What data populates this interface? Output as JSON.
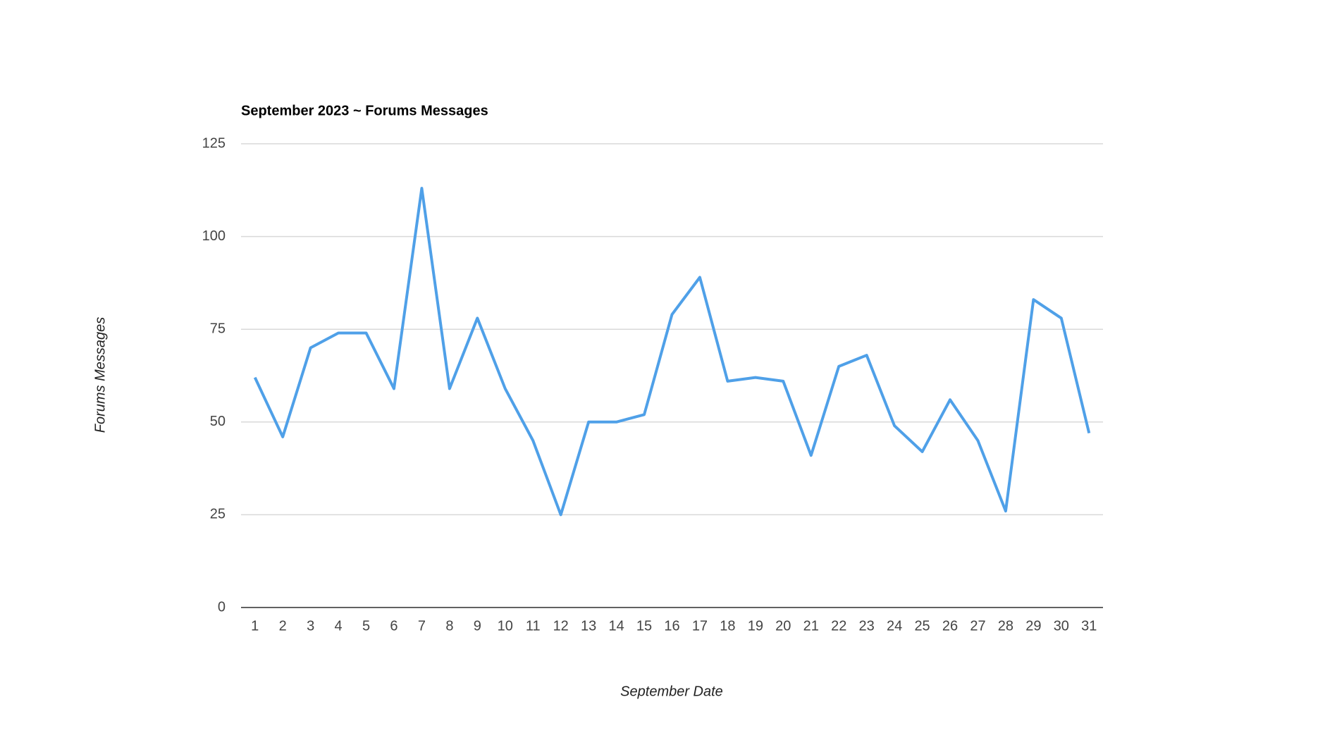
{
  "chart_data": {
    "type": "line",
    "title": "September 2023 ~ Forums Messages",
    "x_label": "September Date",
    "y_label": "Forums Messages",
    "categories": [
      "1",
      "2",
      "3",
      "4",
      "5",
      "6",
      "7",
      "8",
      "9",
      "10",
      "11",
      "12",
      "13",
      "14",
      "15",
      "16",
      "17",
      "18",
      "19",
      "20",
      "21",
      "22",
      "23",
      "24",
      "25",
      "26",
      "27",
      "28",
      "29",
      "30",
      "31"
    ],
    "series": [
      {
        "name": "Forums Messages",
        "color": "#4fa0e8",
        "values": [
          62,
          46,
          70,
          74,
          74,
          59,
          113,
          59,
          78,
          59,
          45,
          25,
          50,
          50,
          52,
          79,
          89,
          61,
          62,
          61,
          41,
          65,
          68,
          49,
          42,
          56,
          45,
          26,
          83,
          78,
          47
        ]
      }
    ],
    "ylim": [
      0,
      125
    ],
    "yticks": [
      0,
      25,
      50,
      75,
      100,
      125
    ],
    "grid": true
  }
}
